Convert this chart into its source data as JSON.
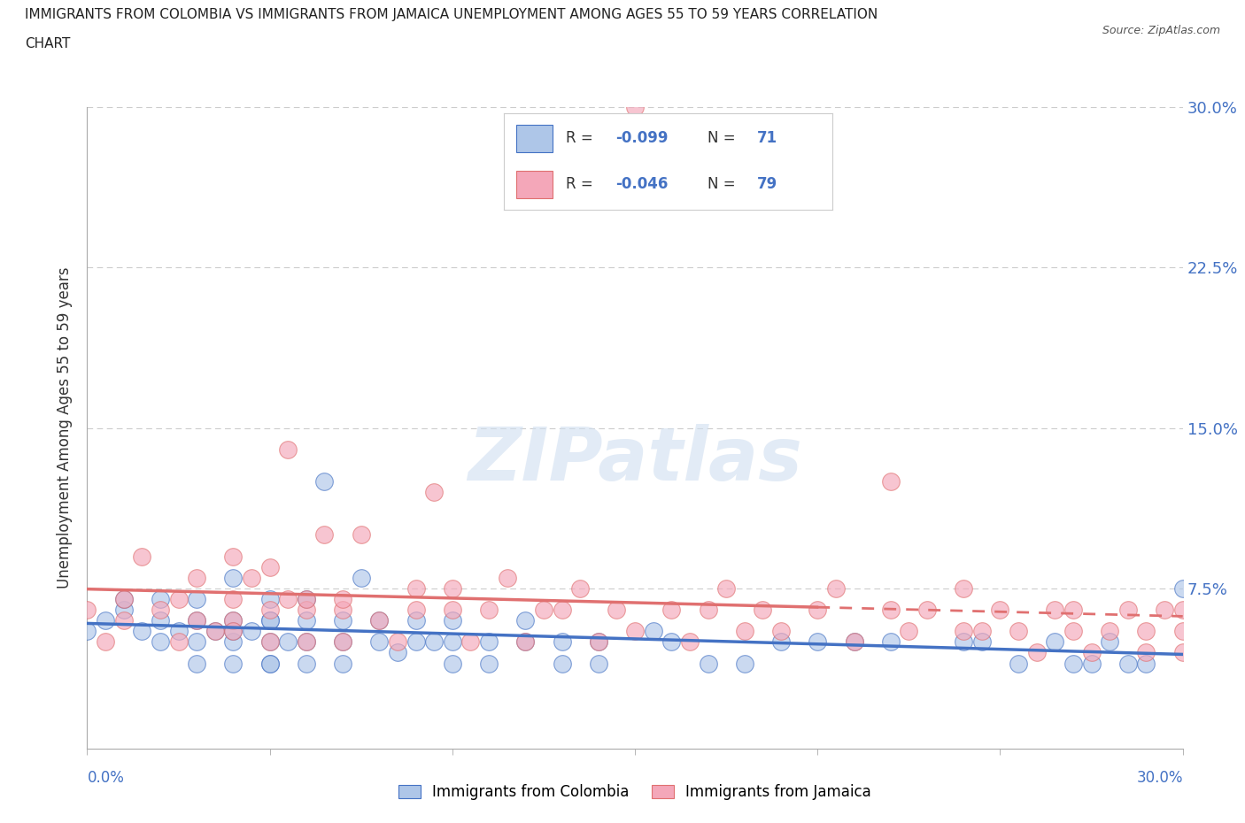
{
  "title_line1": "IMMIGRANTS FROM COLOMBIA VS IMMIGRANTS FROM JAMAICA UNEMPLOYMENT AMONG AGES 55 TO 59 YEARS CORRELATION",
  "title_line2": "CHART",
  "source": "Source: ZipAtlas.com",
  "ylabel": "Unemployment Among Ages 55 to 59 years",
  "xlabel_bottom_left": "0.0%",
  "xlabel_bottom_right": "30.0%",
  "xlim": [
    0.0,
    0.3
  ],
  "ylim": [
    0.0,
    0.3
  ],
  "yticks": [
    0.0,
    0.075,
    0.15,
    0.225,
    0.3
  ],
  "ytick_labels": [
    "",
    "7.5%",
    "15.0%",
    "22.5%",
    "30.0%"
  ],
  "colombia_color": "#aec6e8",
  "jamaica_color": "#f4a7b9",
  "colombia_edge_color": "#4472c4",
  "jamaica_edge_color": "#e07070",
  "colombia_line_color": "#4472c4",
  "jamaica_line_color": "#e07070",
  "colombia_R": -0.099,
  "colombia_N": 71,
  "jamaica_R": -0.046,
  "jamaica_N": 79,
  "watermark": "ZIPatlas",
  "colombia_label": "Immigrants from Colombia",
  "jamaica_label": "Immigrants from Jamaica",
  "colombia_scatter_x": [
    0.0,
    0.005,
    0.01,
    0.01,
    0.015,
    0.02,
    0.02,
    0.02,
    0.025,
    0.03,
    0.03,
    0.03,
    0.03,
    0.035,
    0.04,
    0.04,
    0.04,
    0.04,
    0.04,
    0.045,
    0.05,
    0.05,
    0.05,
    0.05,
    0.05,
    0.05,
    0.055,
    0.06,
    0.06,
    0.06,
    0.06,
    0.065,
    0.07,
    0.07,
    0.07,
    0.075,
    0.08,
    0.08,
    0.085,
    0.09,
    0.09,
    0.095,
    0.1,
    0.1,
    0.1,
    0.11,
    0.11,
    0.12,
    0.12,
    0.13,
    0.13,
    0.14,
    0.14,
    0.155,
    0.16,
    0.17,
    0.18,
    0.19,
    0.2,
    0.21,
    0.22,
    0.24,
    0.245,
    0.255,
    0.265,
    0.27,
    0.275,
    0.28,
    0.285,
    0.29,
    0.3
  ],
  "colombia_scatter_y": [
    0.055,
    0.06,
    0.065,
    0.07,
    0.055,
    0.05,
    0.06,
    0.07,
    0.055,
    0.06,
    0.05,
    0.04,
    0.07,
    0.055,
    0.06,
    0.05,
    0.08,
    0.04,
    0.055,
    0.055,
    0.06,
    0.04,
    0.05,
    0.07,
    0.04,
    0.06,
    0.05,
    0.05,
    0.06,
    0.04,
    0.07,
    0.125,
    0.05,
    0.04,
    0.06,
    0.08,
    0.05,
    0.06,
    0.045,
    0.05,
    0.06,
    0.05,
    0.04,
    0.05,
    0.06,
    0.05,
    0.04,
    0.06,
    0.05,
    0.05,
    0.04,
    0.05,
    0.04,
    0.055,
    0.05,
    0.04,
    0.04,
    0.05,
    0.05,
    0.05,
    0.05,
    0.05,
    0.05,
    0.04,
    0.05,
    0.04,
    0.04,
    0.05,
    0.04,
    0.04,
    0.075
  ],
  "jamaica_scatter_x": [
    0.0,
    0.005,
    0.01,
    0.01,
    0.015,
    0.02,
    0.025,
    0.025,
    0.03,
    0.03,
    0.035,
    0.04,
    0.04,
    0.04,
    0.04,
    0.045,
    0.05,
    0.05,
    0.05,
    0.055,
    0.055,
    0.06,
    0.06,
    0.06,
    0.065,
    0.07,
    0.07,
    0.07,
    0.075,
    0.08,
    0.085,
    0.09,
    0.09,
    0.095,
    0.1,
    0.1,
    0.105,
    0.11,
    0.115,
    0.12,
    0.125,
    0.13,
    0.135,
    0.14,
    0.145,
    0.15,
    0.15,
    0.16,
    0.165,
    0.17,
    0.175,
    0.18,
    0.185,
    0.19,
    0.2,
    0.205,
    0.21,
    0.22,
    0.22,
    0.225,
    0.23,
    0.24,
    0.24,
    0.245,
    0.25,
    0.255,
    0.26,
    0.265,
    0.27,
    0.27,
    0.275,
    0.28,
    0.285,
    0.29,
    0.29,
    0.295,
    0.3,
    0.3,
    0.3
  ],
  "jamaica_scatter_y": [
    0.065,
    0.05,
    0.07,
    0.06,
    0.09,
    0.065,
    0.07,
    0.05,
    0.06,
    0.08,
    0.055,
    0.07,
    0.06,
    0.09,
    0.055,
    0.08,
    0.065,
    0.085,
    0.05,
    0.07,
    0.14,
    0.065,
    0.07,
    0.05,
    0.1,
    0.065,
    0.07,
    0.05,
    0.1,
    0.06,
    0.05,
    0.065,
    0.075,
    0.12,
    0.065,
    0.075,
    0.05,
    0.065,
    0.08,
    0.05,
    0.065,
    0.065,
    0.075,
    0.05,
    0.065,
    0.055,
    0.3,
    0.065,
    0.05,
    0.065,
    0.075,
    0.055,
    0.065,
    0.055,
    0.065,
    0.075,
    0.05,
    0.065,
    0.125,
    0.055,
    0.065,
    0.055,
    0.075,
    0.055,
    0.065,
    0.055,
    0.045,
    0.065,
    0.055,
    0.065,
    0.045,
    0.055,
    0.065,
    0.045,
    0.055,
    0.065,
    0.055,
    0.045,
    0.065
  ]
}
